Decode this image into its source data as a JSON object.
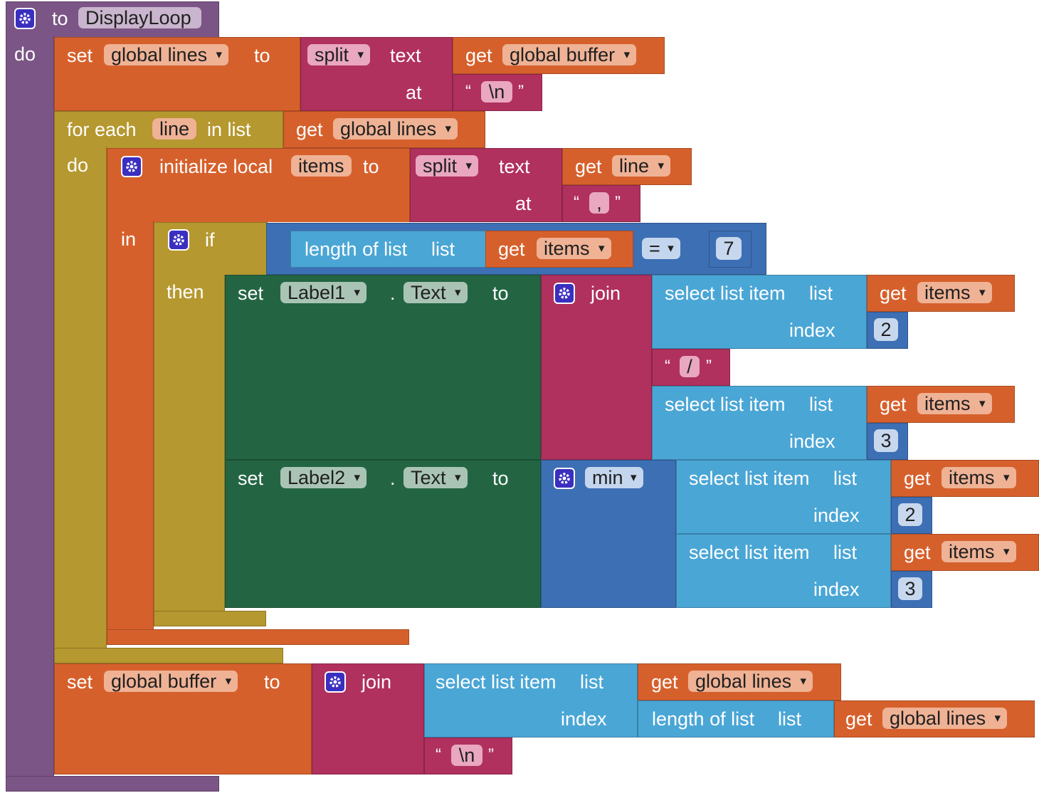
{
  "procedure": {
    "to_label": "to",
    "name": "DisplayLoop",
    "do_label": "do"
  },
  "set_lines": {
    "set_label": "set",
    "var": "global lines",
    "to_label": "to",
    "split_op": "split",
    "text_label": "text",
    "get_label": "get",
    "get_var": "global buffer",
    "at_label": "at",
    "sep": "\\n"
  },
  "for_each": {
    "label": "for each",
    "var": "line",
    "in_list_label": "in list",
    "get_label": "get",
    "get_var": "global lines",
    "do_label": "do"
  },
  "init_local": {
    "label": "initialize local",
    "var": "items",
    "to_label": "to",
    "split_op": "split",
    "text_label": "text",
    "get_label": "get",
    "get_var": "line",
    "at_label": "at",
    "sep": ",",
    "in_label": "in"
  },
  "if_block": {
    "if_label": "if",
    "then_label": "then",
    "length_label": "length of list",
    "list_label": "list",
    "get_label": "get",
    "get_var": "items",
    "op": "=",
    "value": "7"
  },
  "set_label1": {
    "set_label": "set",
    "component": "Label1",
    "dot": ".",
    "property": "Text",
    "to_label": "to",
    "join_label": "join",
    "select1": {
      "label": "select list item",
      "list_label": "list",
      "index_label": "index",
      "get_label": "get",
      "get_var": "items",
      "index": "2"
    },
    "sep": "/",
    "select2": {
      "label": "select list item",
      "list_label": "list",
      "index_label": "index",
      "get_label": "get",
      "get_var": "items",
      "index": "3"
    }
  },
  "set_label2": {
    "set_label": "set",
    "component": "Label2",
    "dot": ".",
    "property": "Text",
    "to_label": "to",
    "math_op": "min",
    "select1": {
      "label": "select list item",
      "list_label": "list",
      "index_label": "index",
      "get_label": "get",
      "get_var": "items",
      "index": "2"
    },
    "select2": {
      "label": "select list item",
      "list_label": "list",
      "index_label": "index",
      "get_label": "get",
      "get_var": "items",
      "index": "3"
    }
  },
  "set_buffer": {
    "set_label": "set",
    "var": "global buffer",
    "to_label": "to",
    "join_label": "join",
    "select_label": "select list item",
    "list_label": "list",
    "index_label": "index",
    "get_label": "get",
    "get_var": "global lines",
    "length_label": "length of list",
    "length_list_label": "list",
    "get2_label": "get",
    "get2_var": "global lines",
    "sep": "\\n"
  },
  "quote_open": "“",
  "quote_close": "”",
  "colors": {
    "procedure": "#7b5585",
    "variables": "#d6602c",
    "text": "#b0305e",
    "control": "#b5982f",
    "lists": "#4aa6d5",
    "math": "#3d6fb4",
    "component": "#236543"
  }
}
